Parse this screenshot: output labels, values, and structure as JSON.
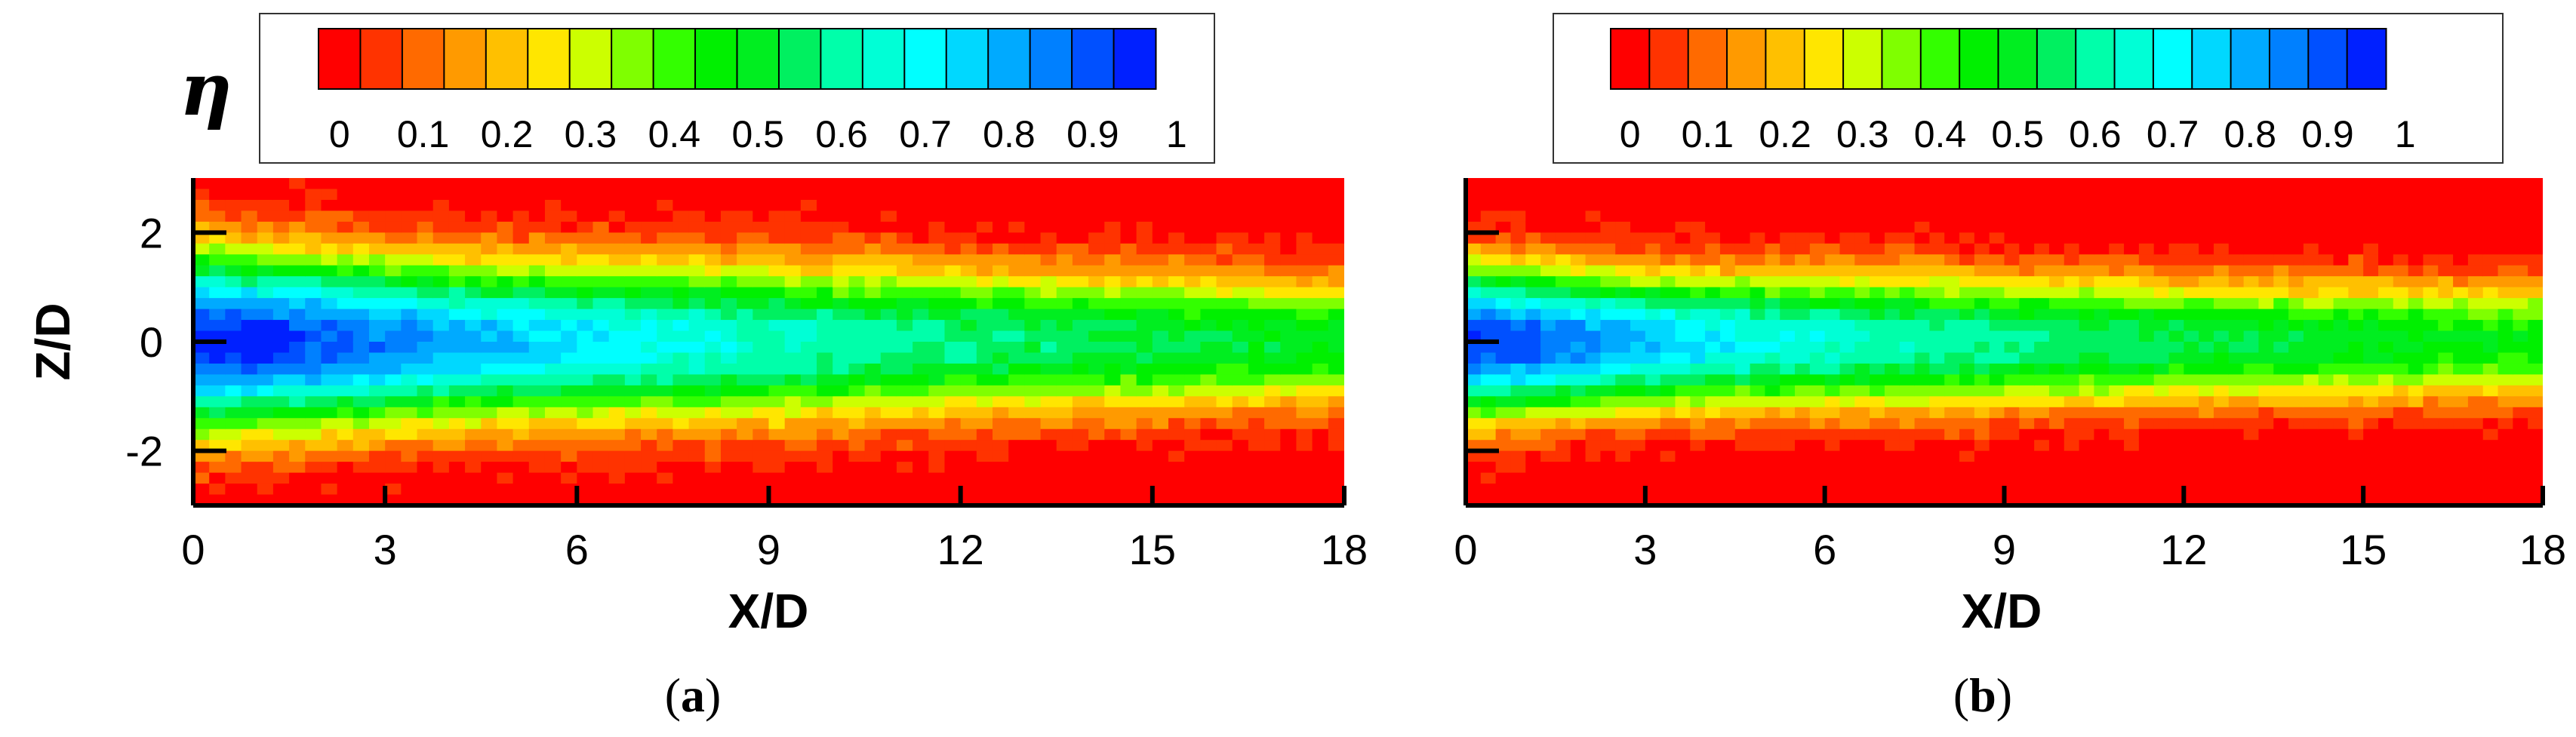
{
  "colorbar": {
    "symbol": "η",
    "tick_labels": [
      "0",
      "0.1",
      "0.2",
      "0.3",
      "0.4",
      "0.5",
      "0.6",
      "0.7",
      "0.8",
      "0.9",
      "1"
    ],
    "colors": [
      "#ff0000",
      "#ff3300",
      "#ff6a00",
      "#ff9a00",
      "#ffc000",
      "#ffe600",
      "#ccff00",
      "#7fff00",
      "#33ff00",
      "#00f000",
      "#00ee20",
      "#00f060",
      "#00ffaa",
      "#00ffd6",
      "#00ffff",
      "#00d8ff",
      "#00aaff",
      "#0080ff",
      "#0050ff",
      "#0020ff"
    ]
  },
  "chart_data": [
    {
      "type": "heatmap",
      "panel_label": "a",
      "xlabel": "X/D",
      "ylabel": "Z/D",
      "xlim": [
        0,
        18
      ],
      "ylim": [
        -3,
        3
      ],
      "x_ticks": [
        "0",
        "3",
        "6",
        "9",
        "12",
        "15",
        "18"
      ],
      "y_ticks": [
        "2",
        "0",
        "-2"
      ],
      "colorbar_range": [
        0,
        1
      ],
      "x": [
        0,
        1,
        2,
        3,
        4,
        5,
        6,
        7,
        8,
        9,
        10,
        11,
        12,
        13,
        14,
        15,
        16,
        17,
        18
      ],
      "centerline_eta": [
        0.98,
        0.96,
        0.92,
        0.88,
        0.83,
        0.79,
        0.75,
        0.72,
        0.69,
        0.66,
        0.64,
        0.62,
        0.6,
        0.58,
        0.56,
        0.55,
        0.54,
        0.52,
        0.5
      ],
      "jet_halfwidth_z": [
        1.5,
        1.45,
        1.4,
        1.35,
        1.3,
        1.3,
        1.3,
        1.3,
        1.3,
        1.3,
        1.25,
        1.25,
        1.2,
        1.2,
        1.15,
        1.15,
        1.1,
        1.1,
        1.05
      ]
    },
    {
      "type": "heatmap",
      "panel_label": "b",
      "xlabel": "X/D",
      "xlim": [
        0,
        18
      ],
      "ylim": [
        -3,
        3
      ],
      "x_ticks": [
        "0",
        "3",
        "6",
        "9",
        "12",
        "15",
        "18"
      ],
      "colorbar_range": [
        0,
        1
      ],
      "x": [
        0,
        1,
        2,
        3,
        4,
        5,
        6,
        7,
        8,
        9,
        10,
        11,
        12,
        13,
        14,
        15,
        16,
        17,
        18
      ],
      "centerline_eta": [
        0.96,
        0.92,
        0.86,
        0.8,
        0.75,
        0.71,
        0.68,
        0.65,
        0.63,
        0.61,
        0.59,
        0.57,
        0.56,
        0.55,
        0.53,
        0.52,
        0.51,
        0.5,
        0.49
      ],
      "jet_halfwidth_z": [
        1.25,
        1.2,
        1.15,
        1.1,
        1.1,
        1.1,
        1.1,
        1.1,
        1.1,
        1.05,
        1.05,
        1.05,
        1.0,
        1.0,
        1.0,
        1.0,
        0.95,
        0.95,
        0.95
      ]
    }
  ]
}
